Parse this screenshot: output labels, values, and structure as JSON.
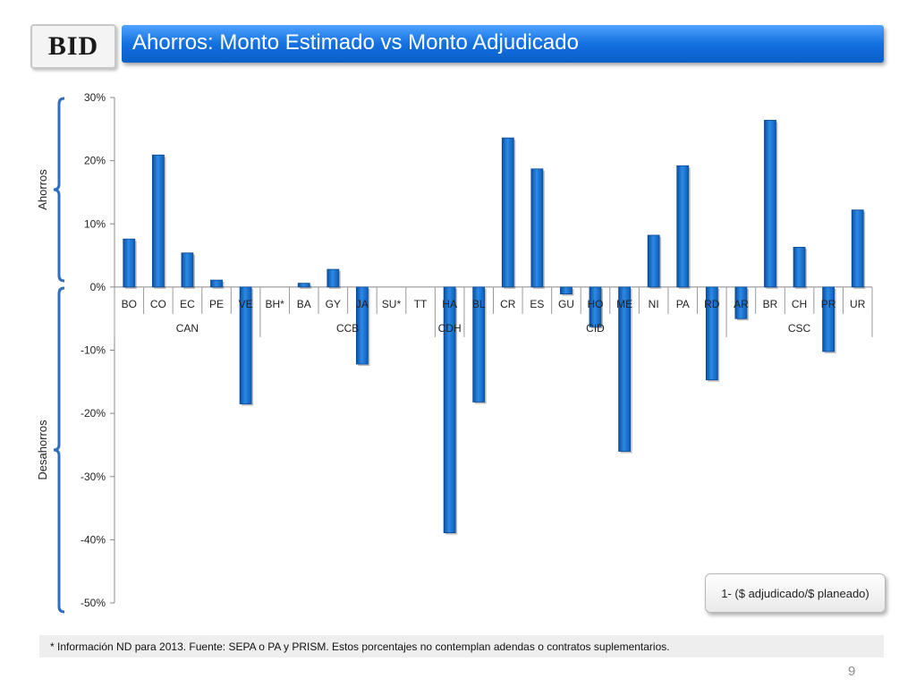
{
  "header": {
    "logo_text": "BID",
    "title": "Ahorros: Monto Estimado vs Monto Adjudicado"
  },
  "side_labels": {
    "top": "Ahorros",
    "bottom": "Desahorros"
  },
  "chart_data": {
    "type": "bar",
    "title": "",
    "xlabel": "",
    "ylabel": "",
    "ylim": [
      -0.5,
      0.3
    ],
    "y_ticks": [
      "30%",
      "20%",
      "10%",
      "0%",
      "-10%",
      "-20%",
      "-30%",
      "-40%",
      "-50%"
    ],
    "y_tick_values": [
      0.3,
      0.2,
      0.1,
      0,
      -0.1,
      -0.2,
      -0.3,
      -0.4,
      -0.5
    ],
    "categories": [
      "BO",
      "CO",
      "EC",
      "PE",
      "VE",
      "BH*",
      "BA",
      "GY",
      "JA",
      "SU*",
      "TT",
      "HA",
      "BL",
      "CR",
      "ES",
      "GU",
      "HO",
      "ME",
      "NI",
      "PA",
      "RD",
      "AR",
      "BR",
      "CH",
      "PR",
      "UR"
    ],
    "values": [
      0.076,
      0.209,
      0.054,
      0.011,
      -0.185,
      0,
      0.006,
      0.028,
      -0.122,
      0,
      0,
      -0.389,
      -0.182,
      0.236,
      0.187,
      -0.011,
      -0.063,
      -0.26,
      0.082,
      0.192,
      -0.147,
      -0.05,
      0.264,
      0.063,
      -0.102,
      0.122
    ],
    "groups": [
      {
        "name": "CAN",
        "start": 0,
        "end": 4
      },
      {
        "name": "CCB",
        "start": 5,
        "end": 10
      },
      {
        "name": "CDH",
        "start": 11,
        "end": 11
      },
      {
        "name": "CID",
        "start": 12,
        "end": 20
      },
      {
        "name": "CSC",
        "start": 21,
        "end": 25
      }
    ],
    "bar_color": "#1f78d1",
    "grid": false,
    "legend": "none"
  },
  "formula_box": "1- ($ adjudicado/$ planeado)",
  "footnote": "* Información ND para 2013. Fuente: SEPA o PA y PRISM. Estos porcentajes no contemplan adendas o contratos suplementarios.",
  "page_number": "9"
}
